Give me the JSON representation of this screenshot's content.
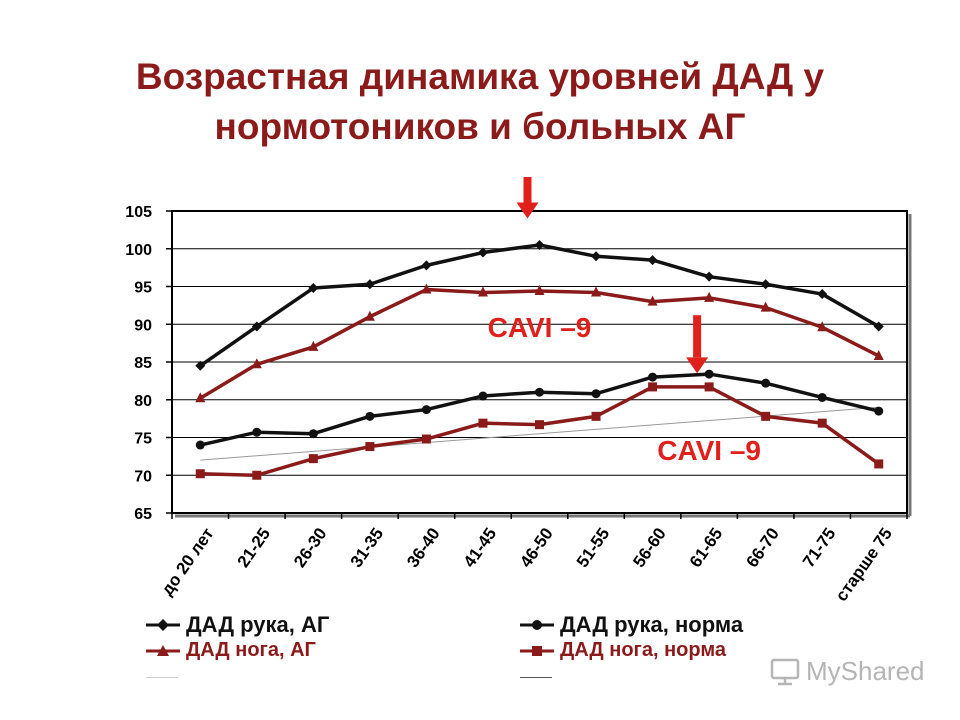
{
  "title_line1": "Возрастная динамика уровней ДАД у",
  "title_line2": "нормотоников и больных АГ",
  "watermark": "MyShared",
  "colors": {
    "black_series": "#111111",
    "red_series": "#8b1a1a",
    "annotation": "#e0201b",
    "arrow": "#e0201b"
  },
  "chart_data": {
    "type": "line",
    "categories": [
      "до 20 лет",
      "21-25",
      "26-30",
      "31-35",
      "36-40",
      "41-45",
      "46-50",
      "51-55",
      "56-60",
      "61-65",
      "66-70",
      "71-75",
      "старше 75"
    ],
    "ylim": [
      65,
      105
    ],
    "yticks": [
      65,
      70,
      75,
      80,
      85,
      90,
      95,
      100,
      105
    ],
    "grid": true,
    "legend_position": "bottom",
    "series": [
      {
        "name": "ДАД рука, АГ",
        "marker": "diamond",
        "color": "#111111",
        "values": [
          84.5,
          89.7,
          94.8,
          95.3,
          97.8,
          99.5,
          100.5,
          99.0,
          98.5,
          96.3,
          95.3,
          94.0,
          89.7
        ]
      },
      {
        "name": "ДАД рука, норма",
        "marker": "circle",
        "color": "#111111",
        "values": [
          74.0,
          75.7,
          75.5,
          77.8,
          78.7,
          80.5,
          81.0,
          80.8,
          83.0,
          83.4,
          82.2,
          80.3,
          78.5
        ]
      },
      {
        "name": "ДАД нога, АГ",
        "marker": "triangle",
        "color": "#8b1a1a",
        "values": [
          80.2,
          84.7,
          87.0,
          91.0,
          94.6,
          94.2,
          94.4,
          94.2,
          93.0,
          93.5,
          92.2,
          89.6,
          85.8
        ]
      },
      {
        "name": "ДАД нога, норма",
        "marker": "square",
        "color": "#8b1a1a",
        "values": [
          70.2,
          70.0,
          72.2,
          73.8,
          74.8,
          76.9,
          76.7,
          77.8,
          81.7,
          81.7,
          77.8,
          76.9,
          71.5
        ]
      }
    ],
    "annotations": [
      {
        "text": "CAVI –9",
        "x": "46-50",
        "y": 88.3
      },
      {
        "text": "CAVI –9",
        "x": "61-65",
        "y": 72.0
      }
    ],
    "arrows": [
      {
        "x": "46-50",
        "from_y": 109.5,
        "to_y": 104.0
      },
      {
        "x": "61-65",
        "from_y": 91.2,
        "to_y": 83.5
      }
    ],
    "trendlines": [
      {
        "from": [
          "до 20 лет",
          72.0
        ],
        "to": [
          "старше 75",
          79.0
        ]
      }
    ]
  }
}
